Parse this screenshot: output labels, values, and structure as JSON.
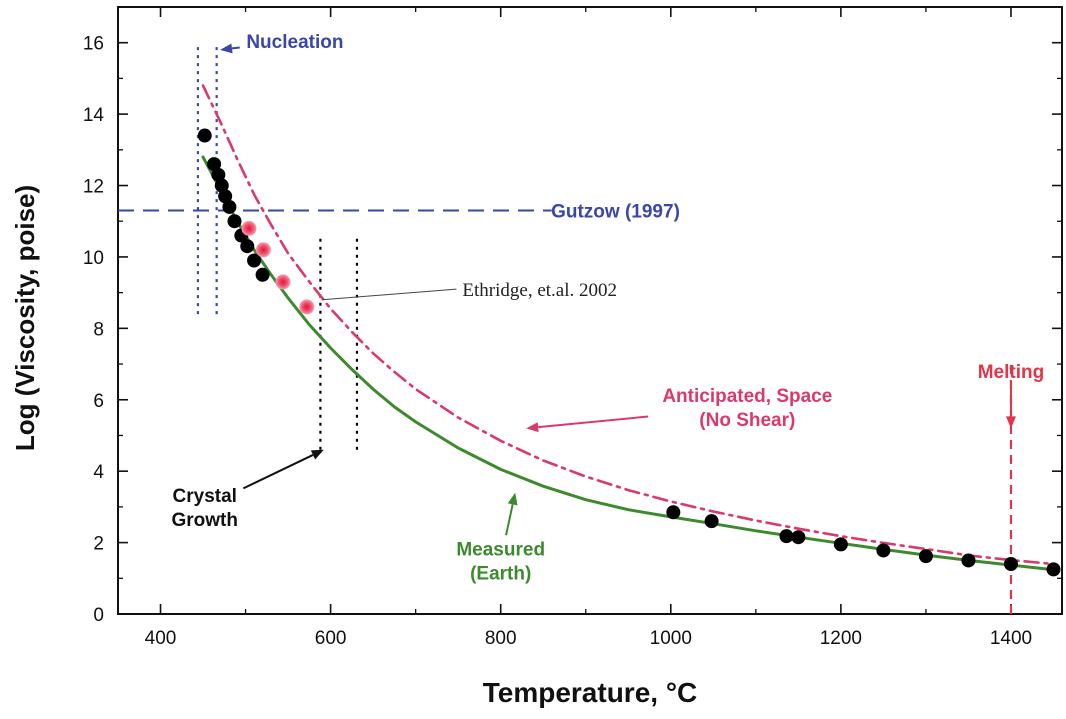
{
  "chart_data": {
    "type": "scatter",
    "xlabel": "Temperature, °C",
    "ylabel": "Log (Viscosity, poise)",
    "xlim": [
      350,
      1460
    ],
    "ylim": [
      0,
      17
    ],
    "xticks": [
      400,
      600,
      800,
      1000,
      1200,
      1400
    ],
    "yticks": [
      0,
      2,
      4,
      6,
      8,
      10,
      12,
      14,
      16
    ],
    "grid": false,
    "legend": "none",
    "series": [
      {
        "kind": "points",
        "color": "#000000",
        "points": [
          [
            452,
            13.4
          ],
          [
            463,
            12.6
          ],
          [
            468,
            12.3
          ],
          [
            472,
            12.0
          ],
          [
            476,
            11.7
          ],
          [
            481,
            11.4
          ],
          [
            487,
            11.0
          ],
          [
            495,
            10.6
          ],
          [
            502,
            10.3
          ],
          [
            510,
            9.9
          ],
          [
            520,
            9.5
          ],
          [
            1003,
            2.85
          ],
          [
            1048,
            2.6
          ],
          [
            1136,
            2.18
          ],
          [
            1150,
            2.15
          ],
          [
            1200,
            1.95
          ],
          [
            1250,
            1.78
          ],
          [
            1300,
            1.62
          ],
          [
            1350,
            1.5
          ],
          [
            1400,
            1.4
          ],
          [
            1450,
            1.25
          ]
        ]
      },
      {
        "kind": "points",
        "color": "#f0506e",
        "points": [
          [
            504,
            10.8
          ],
          [
            521,
            10.2
          ],
          [
            544,
            9.3
          ],
          [
            572,
            8.6
          ]
        ]
      },
      {
        "kind": "curve",
        "color": "#3d8a2e",
        "points": [
          [
            450,
            12.8
          ],
          [
            470,
            11.9
          ],
          [
            490,
            11.0
          ],
          [
            510,
            10.2
          ],
          [
            530,
            9.5
          ],
          [
            550,
            8.85
          ],
          [
            575,
            8.1
          ],
          [
            600,
            7.45
          ],
          [
            625,
            6.85
          ],
          [
            650,
            6.3
          ],
          [
            675,
            5.8
          ],
          [
            700,
            5.38
          ],
          [
            750,
            4.65
          ],
          [
            800,
            4.05
          ],
          [
            850,
            3.58
          ],
          [
            900,
            3.2
          ],
          [
            950,
            2.92
          ],
          [
            1000,
            2.72
          ],
          [
            1050,
            2.53
          ],
          [
            1100,
            2.33
          ],
          [
            1150,
            2.15
          ],
          [
            1200,
            1.98
          ],
          [
            1250,
            1.81
          ],
          [
            1300,
            1.65
          ],
          [
            1350,
            1.5
          ],
          [
            1400,
            1.37
          ],
          [
            1450,
            1.24
          ]
        ]
      },
      {
        "kind": "curve",
        "color": "#d93a6a",
        "dash": "dash-dot",
        "points": [
          [
            450,
            14.8
          ],
          [
            470,
            13.8
          ],
          [
            490,
            12.75
          ],
          [
            510,
            11.75
          ],
          [
            530,
            10.9
          ],
          [
            550,
            10.1
          ],
          [
            575,
            9.3
          ],
          [
            600,
            8.55
          ],
          [
            625,
            7.9
          ],
          [
            650,
            7.3
          ],
          [
            675,
            6.78
          ],
          [
            700,
            6.3
          ],
          [
            750,
            5.5
          ],
          [
            800,
            4.85
          ],
          [
            850,
            4.3
          ],
          [
            900,
            3.85
          ],
          [
            950,
            3.47
          ],
          [
            1000,
            3.15
          ],
          [
            1050,
            2.87
          ],
          [
            1100,
            2.62
          ],
          [
            1150,
            2.39
          ],
          [
            1200,
            2.18
          ],
          [
            1250,
            1.99
          ],
          [
            1300,
            1.82
          ],
          [
            1350,
            1.64
          ],
          [
            1400,
            1.51
          ],
          [
            1450,
            1.4
          ]
        ]
      }
    ],
    "reference_lines": [
      {
        "kind": "hline",
        "y": 11.3,
        "x_from": 350,
        "x_to": 860,
        "color": "#3a46a8",
        "style": "dash"
      },
      {
        "kind": "vline",
        "x": 444,
        "y_from": 8.4,
        "y_to": 16.0,
        "color": "#3a46a8",
        "style": "dot"
      },
      {
        "kind": "vline",
        "x": 466,
        "y_from": 8.4,
        "y_to": 16.0,
        "color": "#3a46a8",
        "style": "dot"
      },
      {
        "kind": "vline",
        "x": 588,
        "y_from": 4.6,
        "y_to": 10.6,
        "color": "#000000",
        "style": "dot"
      },
      {
        "kind": "vline",
        "x": 631,
        "y_from": 4.6,
        "y_to": 10.6,
        "color": "#000000",
        "style": "dot"
      },
      {
        "kind": "vline",
        "x": 1400,
        "y_from": 0.0,
        "y_to": 7.1,
        "color": "#e0364a",
        "style": "dash"
      }
    ],
    "annotations": [
      {
        "text": "Nucleation",
        "x": 558,
        "y": 16.05,
        "color": "#3a46a8",
        "bold": true,
        "arrow_to": [
          470,
          15.8
        ]
      },
      {
        "text": "Gutzow (1997)",
        "x": 935,
        "y": 11.3,
        "color": "#3a46a8",
        "bold": true
      },
      {
        "text": "Ethridge, et.al. 2002",
        "x": 755,
        "y": 9.1,
        "color": "#222222",
        "bold": false,
        "serif": true,
        "line_to": [
          590,
          8.8
        ]
      },
      {
        "text": "Melting",
        "x": 1400,
        "y": 6.8,
        "color": "#e0364a",
        "bold": true,
        "arrow_to": [
          1400,
          5.2
        ]
      },
      {
        "text": [
          "Anticipated, Space",
          "(No Shear)"
        ],
        "x": 1090,
        "y": 5.8,
        "color": "#d93a6a",
        "bold": true,
        "arrow_to": [
          830,
          5.2
        ]
      },
      {
        "text": [
          "Crystal",
          "Growth"
        ],
        "x": 452,
        "y": 3.0,
        "color": "#111111",
        "bold": true,
        "arrow_to": [
          592,
          4.6
        ]
      },
      {
        "text": [
          "Measured",
          "(Earth)"
        ],
        "x": 800,
        "y": 1.5,
        "color": "#3d8a2e",
        "bold": true,
        "arrow_to": [
          817,
          3.4
        ]
      }
    ]
  }
}
